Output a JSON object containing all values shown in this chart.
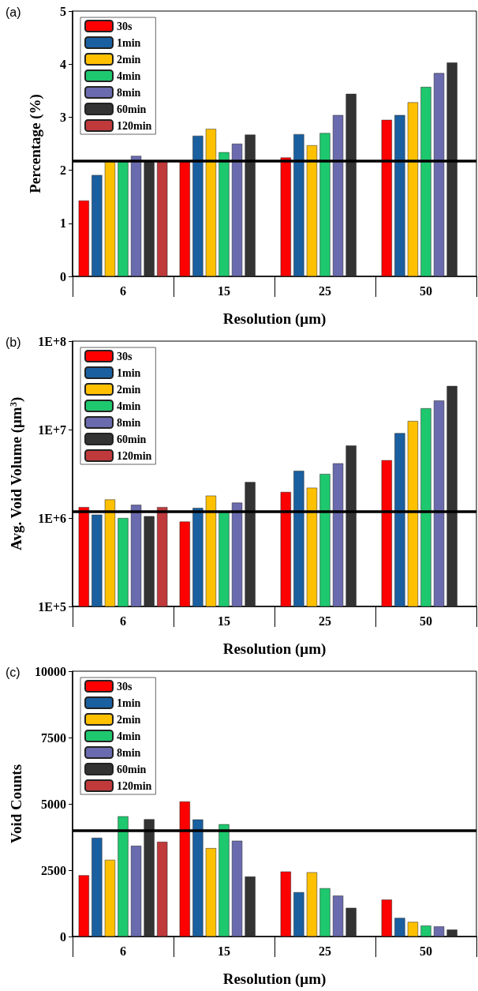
{
  "chart_data": [
    {
      "type": "bar",
      "title": "(a)",
      "xlabel": "Resolution (μm)",
      "ylabel": "Percentage (%)",
      "categories": [
        "6",
        "15",
        "25",
        "50"
      ],
      "series": [
        {
          "name": "30s",
          "color": "#ff0000",
          "values": [
            1.43,
            2.17,
            2.24,
            2.95
          ]
        },
        {
          "name": "1min",
          "color": "#1a5fa0",
          "values": [
            1.91,
            2.65,
            2.68,
            3.04
          ]
        },
        {
          "name": "2min",
          "color": "#ffc000",
          "values": [
            2.17,
            2.78,
            2.47,
            3.28
          ]
        },
        {
          "name": "4min",
          "color": "#1ec86e",
          "values": [
            2.17,
            2.34,
            2.7,
            3.57
          ]
        },
        {
          "name": "8min",
          "color": "#6a6aae",
          "values": [
            2.27,
            2.5,
            3.04,
            3.83
          ]
        },
        {
          "name": "60min",
          "color": "#333333",
          "values": [
            2.17,
            2.67,
            3.44,
            4.03
          ]
        },
        {
          "name": "120min",
          "color": "#c0393b",
          "values": [
            2.17,
            null,
            null,
            null
          ]
        }
      ],
      "ylim": [
        0,
        5
      ],
      "yticks": [
        0,
        1,
        2,
        3,
        4,
        5
      ],
      "legend": "top left",
      "grid": false,
      "ref_lines": [
        {
          "axis": "y",
          "value": 2.17,
          "color": "#000000"
        }
      ]
    },
    {
      "type": "bar",
      "title": "(b)",
      "xlabel": "Resolution (μm)",
      "ylabel": "Avg. Void Volume (μm$^{3}$)",
      "categories": [
        "6",
        "15",
        "25",
        "50"
      ],
      "series": [
        {
          "name": "30s",
          "color": "#ff0000",
          "values": [
            1330000,
            910000,
            1970000,
            4500000
          ]
        },
        {
          "name": "1min",
          "color": "#1a5fa0",
          "values": [
            1090000,
            1300000,
            3410000,
            9100000
          ]
        },
        {
          "name": "2min",
          "color": "#ffc000",
          "values": [
            1620000,
            1790000,
            2200000,
            12500000
          ]
        },
        {
          "name": "4min",
          "color": "#1ec86e",
          "values": [
            1000000,
            1180000,
            3150000,
            17400000
          ]
        },
        {
          "name": "8min",
          "color": "#6a6aae",
          "values": [
            1410000,
            1490000,
            4150000,
            21300000
          ]
        },
        {
          "name": "60min",
          "color": "#333333",
          "values": [
            1050000,
            2550000,
            6600000,
            31100000
          ]
        },
        {
          "name": "120min",
          "color": "#c0393b",
          "values": [
            1330000,
            null,
            null,
            null
          ]
        }
      ],
      "log": "y",
      "ylim": [
        100000,
        100000000
      ],
      "yticks": [
        {
          "value": 100000,
          "label": "1E+5"
        },
        {
          "value": 1000000,
          "label": "1E+6"
        },
        {
          "value": 10000000,
          "label": "1E+7"
        },
        {
          "value": 100000000,
          "label": "1E+8"
        }
      ],
      "legend": "top left",
      "grid": false,
      "ref_lines": [
        {
          "axis": "y",
          "value": 1180000,
          "color": "#000000"
        }
      ]
    },
    {
      "type": "bar",
      "title": "(c)",
      "xlabel": "Resolution (μm)",
      "ylabel": "Void Counts",
      "categories": [
        "6",
        "15",
        "25",
        "50"
      ],
      "series": [
        {
          "name": "30s",
          "color": "#ff0000",
          "values": [
            2310,
            5090,
            2450,
            1390
          ]
        },
        {
          "name": "1min",
          "color": "#1a5fa0",
          "values": [
            3720,
            4410,
            1670,
            700
          ]
        },
        {
          "name": "2min",
          "color": "#ffc000",
          "values": [
            2890,
            3330,
            2420,
            550
          ]
        },
        {
          "name": "4min",
          "color": "#1ec86e",
          "values": [
            4530,
            4230,
            1820,
            410
          ]
        },
        {
          "name": "8min",
          "color": "#6a6aae",
          "values": [
            3420,
            3610,
            1540,
            380
          ]
        },
        {
          "name": "60min",
          "color": "#333333",
          "values": [
            4420,
            2260,
            1080,
            260
          ]
        },
        {
          "name": "120min",
          "color": "#c0393b",
          "values": [
            3570,
            null,
            null,
            null
          ]
        }
      ],
      "ylim": [
        0,
        10000
      ],
      "yticks": [
        0,
        2500,
        5000,
        7500,
        10000
      ],
      "legend": "top left",
      "grid": false,
      "ref_lines": [
        {
          "axis": "y",
          "value": 3990,
          "color": "#000000"
        }
      ]
    }
  ]
}
